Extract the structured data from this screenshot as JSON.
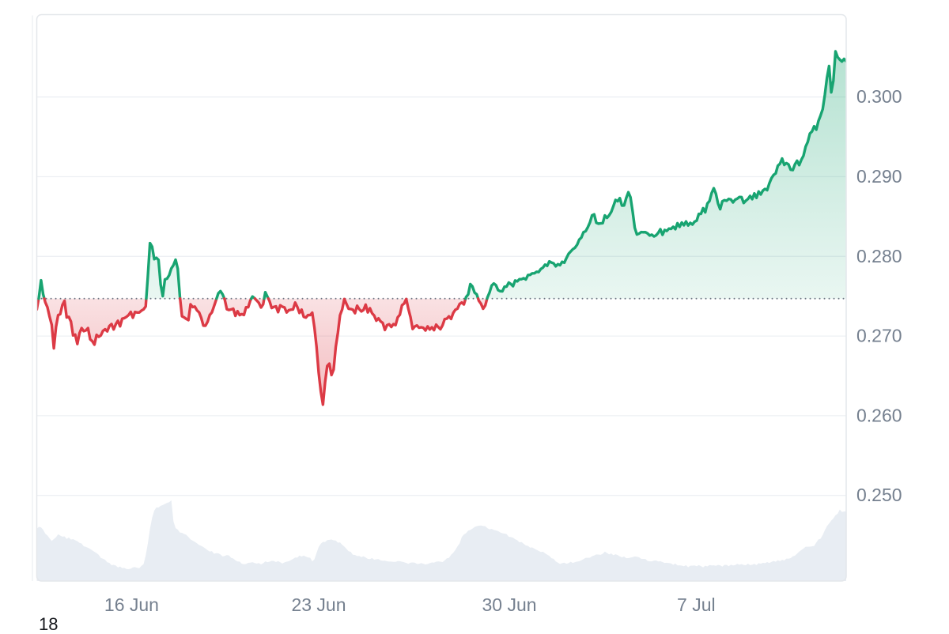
{
  "page": {
    "corner_text": "18"
  },
  "chart_data": {
    "type": "line",
    "title": "",
    "x_axis": {
      "ticks": [
        {
          "label": "16 Jun",
          "pos": 0.1172
        },
        {
          "label": "23 Jun",
          "pos": 0.3483
        },
        {
          "label": "30 Jun",
          "pos": 0.5838
        },
        {
          "label": "7 Jul",
          "pos": 0.8147
        }
      ]
    },
    "y_axis": {
      "ticks": [
        {
          "value": 0.3,
          "label": "0.300"
        },
        {
          "value": 0.29,
          "label": "0.290"
        },
        {
          "value": 0.28,
          "label": "0.280"
        },
        {
          "value": 0.27,
          "label": "0.270"
        },
        {
          "value": 0.26,
          "label": "0.260"
        },
        {
          "value": 0.25,
          "label": "0.250"
        }
      ],
      "range": [
        0.2393,
        0.3103
      ]
    },
    "baseline": 0.2747,
    "grid": true,
    "series": [
      {
        "name": "price",
        "values": [
          0.27335,
          0.27486,
          0.277,
          0.27522,
          0.27423,
          0.27361,
          0.27242,
          0.27142,
          0.26846,
          0.27113,
          0.27262,
          0.27275,
          0.2739,
          0.27442,
          0.27234,
          0.27241,
          0.27182,
          0.27008,
          0.27018,
          0.269,
          0.27035,
          0.271,
          0.27061,
          0.27071,
          0.271,
          0.26959,
          0.26935,
          0.26892,
          0.27015,
          0.26991,
          0.27008,
          0.27066,
          0.27085,
          0.27059,
          0.27126,
          0.27151,
          0.27083,
          0.27149,
          0.27191,
          0.27122,
          0.27218,
          0.27225,
          0.27241,
          0.27264,
          0.27303,
          0.2723,
          0.27302,
          0.27295,
          0.27296,
          0.27319,
          0.27335,
          0.27372,
          0.27746,
          0.28166,
          0.28122,
          0.27965,
          0.27982,
          0.27956,
          0.27645,
          0.27501,
          0.27711,
          0.2772,
          0.27764,
          0.27849,
          0.2789,
          0.27958,
          0.27846,
          0.27497,
          0.27248,
          0.27234,
          0.27215,
          0.272,
          0.27398,
          0.27363,
          0.2737,
          0.27323,
          0.27297,
          0.27229,
          0.27131,
          0.2713,
          0.2718,
          0.27265,
          0.27297,
          0.27375,
          0.27455,
          0.27536,
          0.27564,
          0.27524,
          0.2746,
          0.27337,
          0.27327,
          0.27334,
          0.27343,
          0.27254,
          0.27312,
          0.27263,
          0.27276,
          0.27264,
          0.27361,
          0.27361,
          0.27447,
          0.27496,
          0.27474,
          0.27446,
          0.27416,
          0.27358,
          0.27398,
          0.2755,
          0.27494,
          0.27438,
          0.27352,
          0.27366,
          0.27373,
          0.273,
          0.27386,
          0.27368,
          0.27359,
          0.27296,
          0.27324,
          0.27331,
          0.27334,
          0.2742,
          0.27365,
          0.2729,
          0.27332,
          0.27241,
          0.27232,
          0.27263,
          0.27263,
          0.27293,
          0.27109,
          0.26865,
          0.2654,
          0.26303,
          0.2614,
          0.2642,
          0.26625,
          0.26653,
          0.26511,
          0.26579,
          0.26865,
          0.27041,
          0.27262,
          0.27334,
          0.27465,
          0.27404,
          0.27343,
          0.27339,
          0.27331,
          0.27287,
          0.27381,
          0.27337,
          0.27309,
          0.27327,
          0.27394,
          0.27297,
          0.27349,
          0.27286,
          0.27256,
          0.27193,
          0.27222,
          0.27184,
          0.27165,
          0.27077,
          0.27137,
          0.27148,
          0.27114,
          0.2715,
          0.27137,
          0.27235,
          0.27267,
          0.27386,
          0.27408,
          0.27465,
          0.2734,
          0.27237,
          0.27089,
          0.2712,
          0.27133,
          0.27105,
          0.2711,
          0.27104,
          0.2707,
          0.27121,
          0.27082,
          0.2711,
          0.27074,
          0.27143,
          0.27112,
          0.27086,
          0.27134,
          0.27213,
          0.27218,
          0.27247,
          0.27215,
          0.2729,
          0.2733,
          0.27344,
          0.27403,
          0.27421,
          0.27397,
          0.27489,
          0.27522,
          0.27652,
          0.27622,
          0.27545,
          0.27524,
          0.27442,
          0.27405,
          0.27343,
          0.27383,
          0.27484,
          0.27546,
          0.27634,
          0.27659,
          0.27639,
          0.27577,
          0.27563,
          0.27561,
          0.27619,
          0.27621,
          0.27671,
          0.27653,
          0.27626,
          0.27697,
          0.27686,
          0.27713,
          0.27714,
          0.27726,
          0.2771,
          0.27765,
          0.27768,
          0.27787,
          0.27788,
          0.27806,
          0.27803,
          0.27841,
          0.27859,
          0.27896,
          0.27881,
          0.27937,
          0.27922,
          0.27913,
          0.27875,
          0.27902,
          0.27889,
          0.27932,
          0.2792,
          0.27978,
          0.28032,
          0.28061,
          0.2809,
          0.28108,
          0.28145,
          0.2821,
          0.28236,
          0.28304,
          0.28316,
          0.28365,
          0.28425,
          0.28515,
          0.28527,
          0.28421,
          0.2841,
          0.28414,
          0.28417,
          0.28514,
          0.28483,
          0.28515,
          0.28558,
          0.28631,
          0.28708,
          0.28692,
          0.28731,
          0.28637,
          0.28639,
          0.28732,
          0.28805,
          0.28742,
          0.28563,
          0.28359,
          0.28275,
          0.28285,
          0.28305,
          0.28303,
          0.28304,
          0.28288,
          0.28262,
          0.28272,
          0.2825,
          0.28265,
          0.28296,
          0.28341,
          0.2827,
          0.28331,
          0.28319,
          0.28348,
          0.28345,
          0.28371,
          0.28341,
          0.28416,
          0.2837,
          0.28425,
          0.2839,
          0.28438,
          0.28388,
          0.2842,
          0.28399,
          0.28435,
          0.28448,
          0.28533,
          0.28533,
          0.28605,
          0.28553,
          0.28663,
          0.28695,
          0.28795,
          0.28855,
          0.28786,
          0.28662,
          0.28592,
          0.28691,
          0.28705,
          0.28698,
          0.28721,
          0.28715,
          0.28677,
          0.28711,
          0.28724,
          0.28745,
          0.28744,
          0.2867,
          0.28698,
          0.2872,
          0.28759,
          0.28718,
          0.2879,
          0.28734,
          0.28814,
          0.28777,
          0.28826,
          0.28846,
          0.28831,
          0.28916,
          0.28981,
          0.29022,
          0.29041,
          0.29138,
          0.29162,
          0.29228,
          0.29148,
          0.2917,
          0.29154,
          0.29087,
          0.29083,
          0.29155,
          0.292,
          0.29145,
          0.29212,
          0.29263,
          0.29376,
          0.29436,
          0.29541,
          0.29568,
          0.29633,
          0.2959,
          0.29698,
          0.29768,
          0.29847,
          0.30026,
          0.30242,
          0.30389,
          0.30058,
          0.30205,
          0.30573,
          0.305,
          0.30469,
          0.30445,
          0.30478,
          0.30448
        ]
      }
    ],
    "volume": {
      "name": "volume",
      "max": 1.0,
      "values": [
        0.6495,
        0.6714,
        0.6658,
        0.6363,
        0.587,
        0.5651,
        0.5289,
        0.4977,
        0.5199,
        0.5428,
        0.58,
        0.5642,
        0.5506,
        0.5542,
        0.5222,
        0.5399,
        0.5148,
        0.5198,
        0.5056,
        0.495,
        0.4726,
        0.4658,
        0.4304,
        0.4238,
        0.4115,
        0.3978,
        0.3796,
        0.3631,
        0.3472,
        0.3251,
        0.2852,
        0.2775,
        0.2638,
        0.2328,
        0.2254,
        0.196,
        0.2004,
        0.1925,
        0.1679,
        0.1804,
        0.1602,
        0.1627,
        0.1496,
        0.1472,
        0.1528,
        0.1687,
        0.1724,
        0.1642,
        0.159,
        0.1877,
        0.2095,
        0.3169,
        0.4659,
        0.6458,
        0.7835,
        0.8725,
        0.9125,
        0.9115,
        0.9323,
        0.942,
        0.9562,
        0.9693,
        0.9781,
        1.0009,
        0.7417,
        0.6574,
        0.6388,
        0.6013,
        0.5976,
        0.5827,
        0.573,
        0.5467,
        0.5155,
        0.5011,
        0.4865,
        0.4687,
        0.4474,
        0.4358,
        0.4214,
        0.4026,
        0.3818,
        0.3646,
        0.3712,
        0.3377,
        0.3457,
        0.3441,
        0.3298,
        0.3054,
        0.3119,
        0.3225,
        0.3169,
        0.2875,
        0.2791,
        0.2578,
        0.2425,
        0.2416,
        0.2143,
        0.2079,
        0.2123,
        0.2258,
        0.2284,
        0.2345,
        0.2226,
        0.2174,
        0.2231,
        0.2064,
        0.2209,
        0.2434,
        0.2336,
        0.2407,
        0.2515,
        0.2491,
        0.2348,
        0.2476,
        0.2332,
        0.2165,
        0.2319,
        0.2399,
        0.2453,
        0.2594,
        0.2743,
        0.2914,
        0.2909,
        0.316,
        0.304,
        0.316,
        0.3028,
        0.2934,
        0.289,
        0.2443,
        0.27,
        0.3484,
        0.4218,
        0.4632,
        0.4853,
        0.4838,
        0.5077,
        0.5112,
        0.5149,
        0.5051,
        0.5022,
        0.4753,
        0.479,
        0.4495,
        0.4276,
        0.3999,
        0.3703,
        0.3624,
        0.3262,
        0.3232,
        0.31,
        0.3107,
        0.2963,
        0.3071,
        0.2919,
        0.275,
        0.272,
        0.2852,
        0.2652,
        0.2702,
        0.2736,
        0.2559,
        0.2508,
        0.2524,
        0.2455,
        0.242,
        0.2417,
        0.2383,
        0.2379,
        0.2471,
        0.2467,
        0.2408,
        0.2328,
        0.2242,
        0.2137,
        0.2276,
        0.2306,
        0.2284,
        0.2125,
        0.2138,
        0.2235,
        0.2139,
        0.2063,
        0.2106,
        0.2222,
        0.2307,
        0.2275,
        0.24,
        0.2436,
        0.2404,
        0.2354,
        0.2557,
        0.2815,
        0.2864,
        0.3259,
        0.3509,
        0.3856,
        0.4296,
        0.4673,
        0.5449,
        0.5774,
        0.5933,
        0.6248,
        0.6335,
        0.6489,
        0.6703,
        0.6799,
        0.6865,
        0.6885,
        0.6828,
        0.6799,
        0.6552,
        0.641,
        0.647,
        0.6342,
        0.6273,
        0.6203,
        0.6024,
        0.5936,
        0.5883,
        0.5819,
        0.5496,
        0.5458,
        0.5381,
        0.5182,
        0.5063,
        0.4803,
        0.4842,
        0.462,
        0.4415,
        0.4365,
        0.4148,
        0.4165,
        0.4019,
        0.3878,
        0.3742,
        0.3599,
        0.3636,
        0.3445,
        0.3267,
        0.312,
        0.2829,
        0.2752,
        0.2441,
        0.2275,
        0.2123,
        0.222,
        0.2278,
        0.2149,
        0.222,
        0.2385,
        0.2248,
        0.2338,
        0.2416,
        0.2456,
        0.2574,
        0.2722,
        0.2875,
        0.288,
        0.2888,
        0.3079,
        0.3173,
        0.3297,
        0.3287,
        0.3247,
        0.3386,
        0.3649,
        0.3476,
        0.3313,
        0.3419,
        0.3203,
        0.3319,
        0.3219,
        0.3051,
        0.2936,
        0.3033,
        0.2829,
        0.2841,
        0.2899,
        0.2968,
        0.3046,
        0.3021,
        0.2957,
        0.276,
        0.2742,
        0.2733,
        0.2486,
        0.2457,
        0.2433,
        0.2533,
        0.255,
        0.2423,
        0.2461,
        0.2347,
        0.224,
        0.2272,
        0.2225,
        0.2184,
        0.2014,
        0.2174,
        0.1933,
        0.1943,
        0.1916,
        0.1837,
        0.1966,
        0.1714,
        0.1903,
        0.1917,
        0.193,
        0.1843,
        0.1973,
        0.1855,
        0.1693,
        0.1898,
        0.1819,
        0.1991,
        0.1941,
        0.1952,
        0.1892,
        0.2003,
        0.1945,
        0.1794,
        0.2004,
        0.2,
        0.1836,
        0.2023,
        0.194,
        0.1978,
        0.2132,
        0.2022,
        0.209,
        0.2002,
        0.196,
        0.2152,
        0.1968,
        0.2024,
        0.2131,
        0.1971,
        0.2213,
        0.2148,
        0.2259,
        0.2215,
        0.235,
        0.2228,
        0.2379,
        0.2491,
        0.2385,
        0.2586,
        0.2467,
        0.2629,
        0.2548,
        0.2787,
        0.2768,
        0.2842,
        0.3062,
        0.3152,
        0.3394,
        0.3655,
        0.3846,
        0.403,
        0.4257,
        0.4253,
        0.4262,
        0.4301,
        0.4349,
        0.4777,
        0.5163,
        0.5247,
        0.5713,
        0.6299,
        0.6818,
        0.713,
        0.7503,
        0.7769,
        0.8157,
        0.8343,
        0.8871,
        0.8564,
        0.8628,
        0.8668
      ]
    },
    "colors": {
      "up": "#18a471",
      "down": "#dc3a45",
      "up_fill": "#18a471",
      "down_fill": "#dc3a45",
      "baseline_dots": "#6a7280",
      "grid": "#eef0f4",
      "border": "#e4e7eb",
      "axis_label": "#75808f",
      "volume_fill": "#e8edf3",
      "background": "#ffffff",
      "corner_text": "#16181d"
    }
  }
}
